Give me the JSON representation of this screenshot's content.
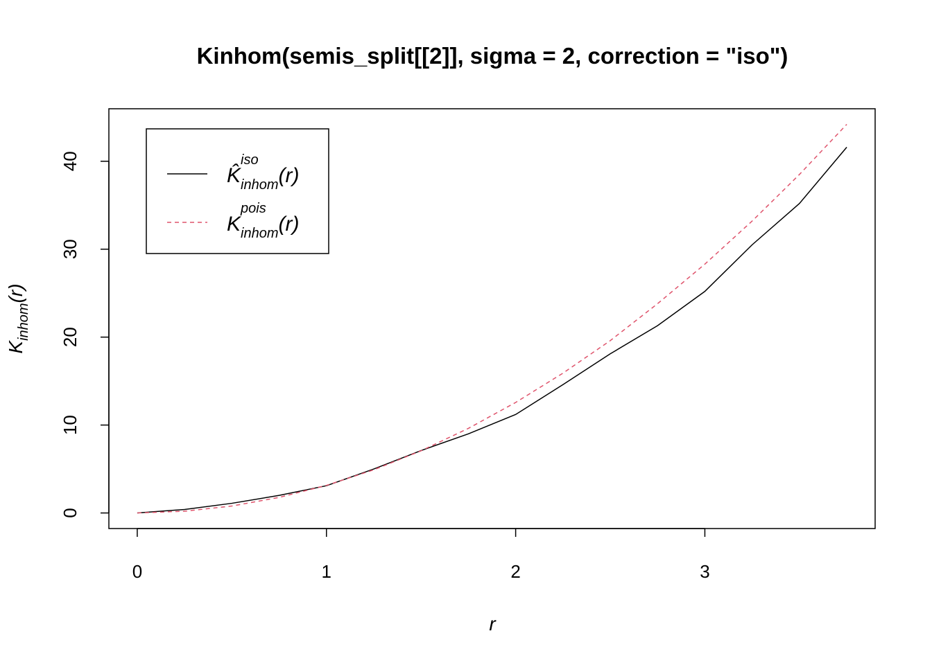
{
  "chart_data": {
    "type": "line",
    "title": "Kinhom(semis_split[[2]], sigma = 2, correction = \"iso\")",
    "xlabel": "r",
    "ylabel": "K",
    "ylabel_sub": "inhom",
    "ylabel_arg": "(r)",
    "x": [
      0,
      0.25,
      0.5,
      0.75,
      1,
      1.25,
      1.5,
      1.75,
      2,
      2.25,
      2.5,
      2.75,
      3,
      3.25,
      3.5,
      3.75
    ],
    "series": [
      {
        "name": "K̂",
        "name_sub": "inhom",
        "name_sup": "iso",
        "name_arg": "(r)",
        "color": "#000000",
        "linestyle": "solid",
        "values": [
          0,
          0.4,
          1.1,
          2.0,
          3.1,
          5.0,
          7.1,
          9.0,
          11.2,
          14.6,
          18.1,
          21.3,
          25.2,
          30.5,
          35.2,
          41.6
        ]
      },
      {
        "name": "K",
        "name_sub": "inhom",
        "name_sup": "pois",
        "name_arg": "(r)",
        "color": "#df536b",
        "linestyle": "dashed",
        "values": [
          0,
          0.2,
          0.79,
          1.77,
          3.14,
          4.91,
          7.07,
          9.62,
          12.57,
          15.9,
          19.6,
          23.8,
          28.3,
          33.2,
          38.5,
          44.2
        ]
      }
    ],
    "xlim": [
      -0.15,
      3.9
    ],
    "ylim": [
      -1.77,
      45.97
    ],
    "xticks": [
      0,
      1,
      2,
      3
    ],
    "yticks": [
      0,
      10,
      20,
      30,
      40
    ],
    "legend": "top-left"
  }
}
